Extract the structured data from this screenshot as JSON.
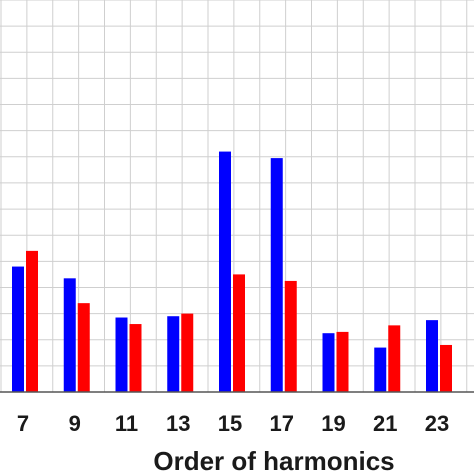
{
  "chart_data": {
    "type": "bar",
    "title": "",
    "xlabel": "Order of harmonics",
    "ylabel": "",
    "categories": [
      "7",
      "9",
      "11",
      "13",
      "15",
      "17",
      "19",
      "21",
      "23"
    ],
    "series": [
      {
        "color": "#0000ff",
        "values": [
          4.8,
          4.35,
          2.85,
          2.9,
          9.2,
          8.95,
          2.25,
          1.7,
          2.75
        ]
      },
      {
        "color": "#ff0000",
        "values": [
          5.4,
          3.4,
          2.6,
          3.0,
          4.5,
          4.25,
          2.3,
          2.55,
          1.8
        ]
      }
    ],
    "ylim": [
      0,
      15
    ],
    "grid": true,
    "legend": "none"
  }
}
